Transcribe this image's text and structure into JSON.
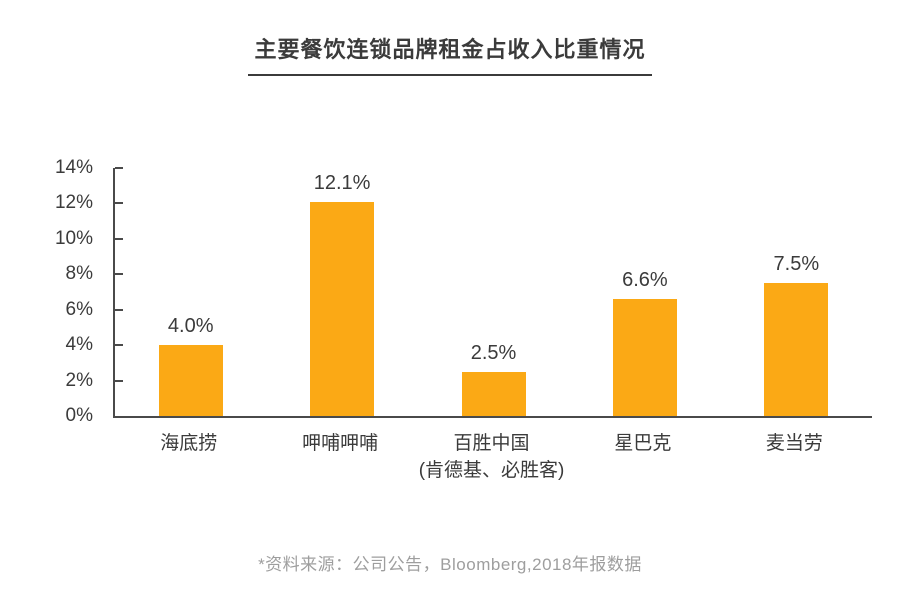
{
  "title": "主要餐饮连锁品牌租金占收入比重情况",
  "source_note": "*资料来源：公司公告，Bloomberg,2018年报数据",
  "colors": {
    "bar": "#fba915",
    "axis": "#4a4a4a",
    "text": "#3b3b3b",
    "source_note": "#9e9e9e"
  },
  "chart_data": {
    "type": "bar",
    "title": "主要餐饮连锁品牌租金占收入比重情况",
    "categories": [
      "海底捞",
      "呷哺呷哺",
      "百胜中国 (肯德基、必胜客)",
      "星巴克",
      "麦当劳"
    ],
    "category_main_labels": [
      "海底捞",
      "呷哺呷哺",
      "百胜中国",
      "星巴克",
      "麦当劳"
    ],
    "category_sublabels": [
      "",
      "",
      "(肯德基、必胜客)",
      "",
      ""
    ],
    "values": [
      4.0,
      12.1,
      2.5,
      6.6,
      7.5
    ],
    "bar_labels": [
      "4.0%",
      "12.1%",
      "2.5%",
      "6.6%",
      "7.5%"
    ],
    "xlabel": "",
    "ylabel": "",
    "ylim": [
      0,
      14
    ],
    "ytick_values": [
      0,
      2,
      4,
      6,
      8,
      10,
      12,
      14
    ],
    "ytick_labels": [
      "0%",
      "2%",
      "4%",
      "6%",
      "8%",
      "10%",
      "12%",
      "14%"
    ],
    "grid": false,
    "legend": false,
    "bar_color": "#fba915",
    "annotation": "*资料来源：公司公告，Bloomberg,2018年报数据"
  }
}
